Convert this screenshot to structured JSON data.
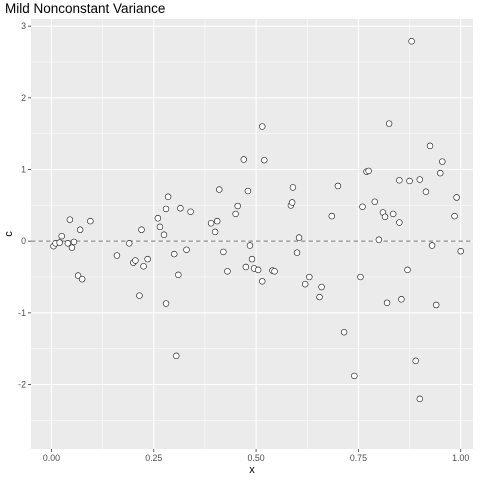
{
  "chart_data": {
    "type": "scatter",
    "title": "Mild Nonconstant Variance",
    "xlabel": "x",
    "ylabel": "c",
    "xlim": [
      -0.05,
      1.03
    ],
    "ylim": [
      -2.9,
      3.1
    ],
    "x_ticks": [
      {
        "value": 0.0,
        "label": "0.00"
      },
      {
        "value": 0.25,
        "label": "0.25"
      },
      {
        "value": 0.5,
        "label": "0.50"
      },
      {
        "value": 0.75,
        "label": "0.75"
      },
      {
        "value": 1.0,
        "label": "1.00"
      }
    ],
    "y_ticks": [
      {
        "value": -2,
        "label": "-2"
      },
      {
        "value": -1,
        "label": "-1"
      },
      {
        "value": 0,
        "label": "0"
      },
      {
        "value": 1,
        "label": "1"
      },
      {
        "value": 2,
        "label": "2"
      },
      {
        "value": 3,
        "label": "3"
      }
    ],
    "reference_line": {
      "y": 0,
      "style": "dashed",
      "color": "#a6a6a6"
    },
    "grid": true,
    "panel_background": "#ebebeb",
    "grid_color": "#ffffff",
    "point_fill": "#ffffff",
    "point_stroke": "#000000",
    "points": [
      {
        "x": 0.005,
        "y": -0.07
      },
      {
        "x": 0.01,
        "y": -0.03
      },
      {
        "x": 0.02,
        "y": -0.02
      },
      {
        "x": 0.025,
        "y": 0.07
      },
      {
        "x": 0.04,
        "y": -0.03
      },
      {
        "x": 0.045,
        "y": 0.3
      },
      {
        "x": 0.05,
        "y": -0.09
      },
      {
        "x": 0.055,
        "y": -0.01
      },
      {
        "x": 0.065,
        "y": -0.48
      },
      {
        "x": 0.07,
        "y": 0.16
      },
      {
        "x": 0.075,
        "y": -0.53
      },
      {
        "x": 0.095,
        "y": 0.28
      },
      {
        "x": 0.16,
        "y": -0.2
      },
      {
        "x": 0.19,
        "y": -0.03
      },
      {
        "x": 0.2,
        "y": -0.3
      },
      {
        "x": 0.205,
        "y": -0.27
      },
      {
        "x": 0.215,
        "y": -0.76
      },
      {
        "x": 0.22,
        "y": 0.16
      },
      {
        "x": 0.225,
        "y": -0.35
      },
      {
        "x": 0.235,
        "y": -0.25
      },
      {
        "x": 0.26,
        "y": 0.32
      },
      {
        "x": 0.265,
        "y": 0.2
      },
      {
        "x": 0.275,
        "y": 0.09
      },
      {
        "x": 0.28,
        "y": 0.45
      },
      {
        "x": 0.28,
        "y": -0.87
      },
      {
        "x": 0.285,
        "y": 0.62
      },
      {
        "x": 0.3,
        "y": -0.18
      },
      {
        "x": 0.305,
        "y": -1.6
      },
      {
        "x": 0.31,
        "y": -0.47
      },
      {
        "x": 0.315,
        "y": 0.46
      },
      {
        "x": 0.33,
        "y": -0.12
      },
      {
        "x": 0.34,
        "y": 0.41
      },
      {
        "x": 0.39,
        "y": 0.25
      },
      {
        "x": 0.4,
        "y": 0.13
      },
      {
        "x": 0.405,
        "y": 0.28
      },
      {
        "x": 0.41,
        "y": 0.72
      },
      {
        "x": 0.42,
        "y": -0.15
      },
      {
        "x": 0.43,
        "y": -0.42
      },
      {
        "x": 0.45,
        "y": 0.38
      },
      {
        "x": 0.455,
        "y": 0.49
      },
      {
        "x": 0.47,
        "y": 1.14
      },
      {
        "x": 0.475,
        "y": -0.36
      },
      {
        "x": 0.48,
        "y": 0.7
      },
      {
        "x": 0.485,
        "y": -0.06
      },
      {
        "x": 0.49,
        "y": -0.25
      },
      {
        "x": 0.495,
        "y": -0.38
      },
      {
        "x": 0.505,
        "y": -0.4
      },
      {
        "x": 0.515,
        "y": 1.6
      },
      {
        "x": 0.515,
        "y": -0.56
      },
      {
        "x": 0.52,
        "y": 1.13
      },
      {
        "x": 0.54,
        "y": -0.41
      },
      {
        "x": 0.545,
        "y": -0.42
      },
      {
        "x": 0.585,
        "y": 0.5
      },
      {
        "x": 0.588,
        "y": 0.54
      },
      {
        "x": 0.59,
        "y": 0.75
      },
      {
        "x": 0.6,
        "y": -0.16
      },
      {
        "x": 0.605,
        "y": 0.05
      },
      {
        "x": 0.62,
        "y": -0.6
      },
      {
        "x": 0.63,
        "y": -0.5
      },
      {
        "x": 0.655,
        "y": -0.78
      },
      {
        "x": 0.66,
        "y": -0.64
      },
      {
        "x": 0.685,
        "y": 0.35
      },
      {
        "x": 0.7,
        "y": 0.77
      },
      {
        "x": 0.715,
        "y": -1.27
      },
      {
        "x": 0.74,
        "y": -1.88
      },
      {
        "x": 0.755,
        "y": -0.5
      },
      {
        "x": 0.76,
        "y": 0.48
      },
      {
        "x": 0.77,
        "y": 0.97
      },
      {
        "x": 0.775,
        "y": 0.98
      },
      {
        "x": 0.79,
        "y": 0.55
      },
      {
        "x": 0.8,
        "y": 0.02
      },
      {
        "x": 0.81,
        "y": 0.4
      },
      {
        "x": 0.815,
        "y": 0.34
      },
      {
        "x": 0.82,
        "y": -0.86
      },
      {
        "x": 0.825,
        "y": 1.64
      },
      {
        "x": 0.835,
        "y": 0.38
      },
      {
        "x": 0.85,
        "y": 0.85
      },
      {
        "x": 0.85,
        "y": 0.26
      },
      {
        "x": 0.855,
        "y": -0.81
      },
      {
        "x": 0.87,
        "y": -0.4
      },
      {
        "x": 0.875,
        "y": 0.84
      },
      {
        "x": 0.88,
        "y": 2.79
      },
      {
        "x": 0.89,
        "y": -1.67
      },
      {
        "x": 0.9,
        "y": 0.86
      },
      {
        "x": 0.9,
        "y": -2.2
      },
      {
        "x": 0.915,
        "y": 0.69
      },
      {
        "x": 0.925,
        "y": 1.33
      },
      {
        "x": 0.93,
        "y": -0.06
      },
      {
        "x": 0.94,
        "y": -0.89
      },
      {
        "x": 0.95,
        "y": 0.95
      },
      {
        "x": 0.955,
        "y": 1.11
      },
      {
        "x": 0.985,
        "y": 0.35
      },
      {
        "x": 0.99,
        "y": 0.61
      },
      {
        "x": 1.0,
        "y": -0.14
      }
    ]
  }
}
